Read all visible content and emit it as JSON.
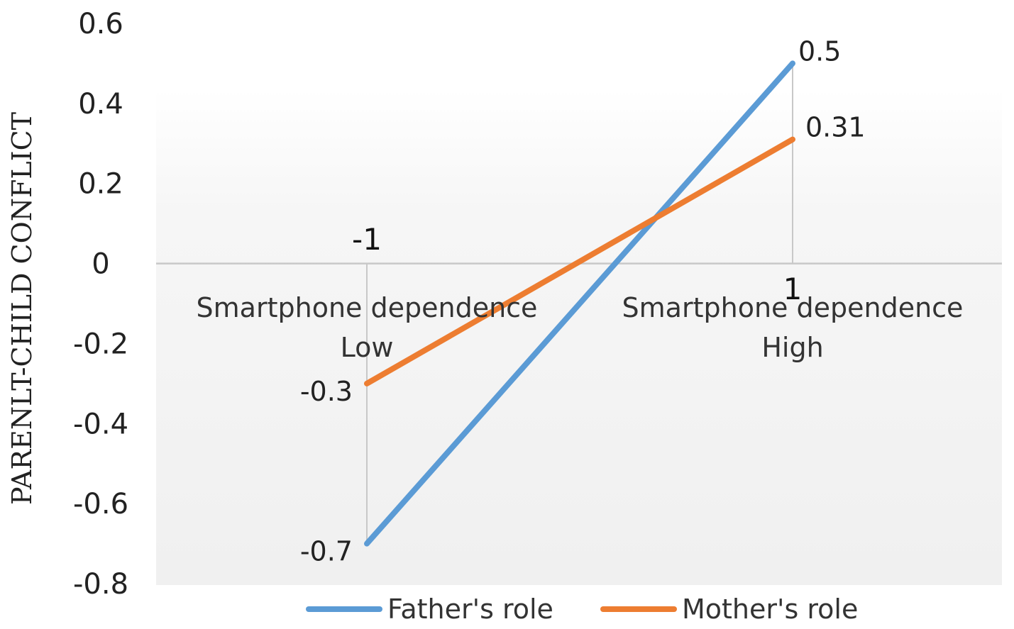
{
  "chart_data": {
    "type": "line",
    "ylabel": "PARENLT-CHILD CONFLICT",
    "ylim": [
      -0.8,
      0.6
    ],
    "yticks": [
      "0.6",
      "0.4",
      "0.2",
      "0",
      "-0.2",
      "-0.4",
      "-0.6",
      "-0.8"
    ],
    "x": [
      -1,
      1
    ],
    "xtick_labels": [
      "-1",
      "1"
    ],
    "categories": [
      {
        "line1": "Smartphone  dependence",
        "line2": "Low"
      },
      {
        "line1": "Smartphone  dependence",
        "line2": "High"
      }
    ],
    "series": [
      {
        "name": "Father's role",
        "color": "#5b9bd5",
        "values": [
          -0.7,
          0.5
        ],
        "labels": [
          "-0.7",
          "0.5"
        ]
      },
      {
        "name": "Mother's role",
        "color": "#ed7d31",
        "values": [
          -0.3,
          0.31
        ],
        "labels": [
          "-0.3",
          "0.31"
        ]
      }
    ],
    "grid": false,
    "legend": "bottom"
  }
}
